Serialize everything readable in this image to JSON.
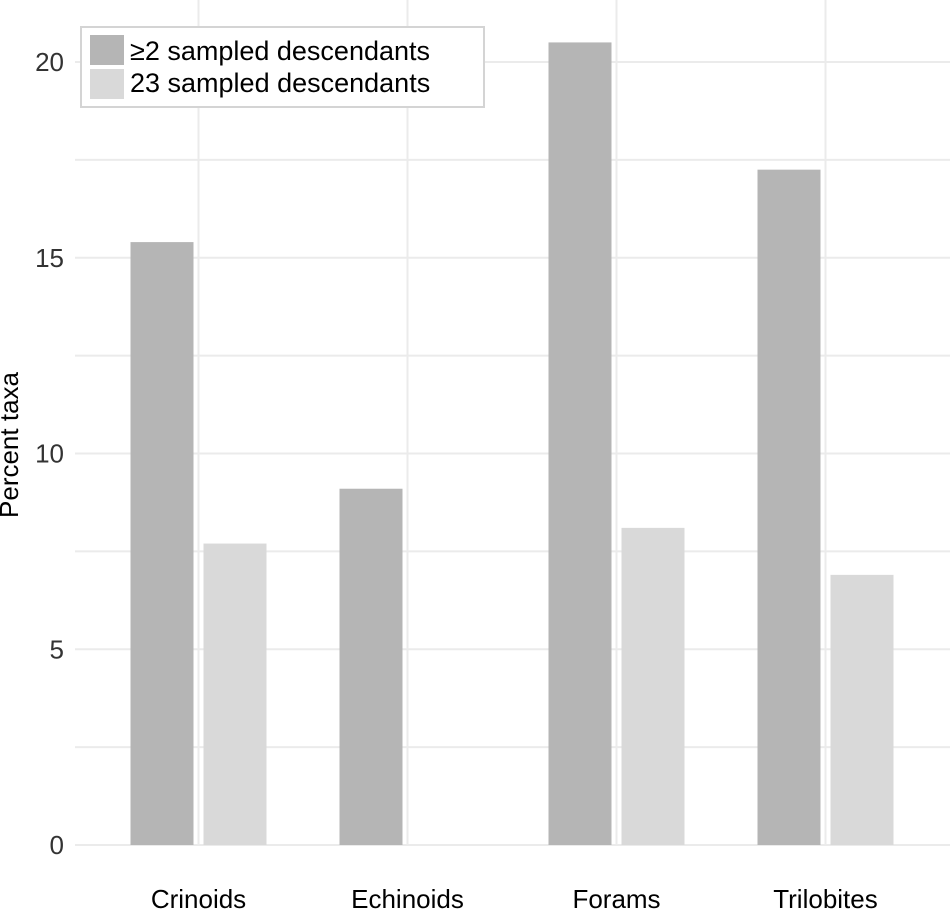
{
  "chart_data": {
    "type": "bar",
    "title": "",
    "xlabel": "",
    "ylabel": "Percent taxa",
    "ylim": [
      0,
      20.5
    ],
    "yticks": [
      0,
      5,
      10,
      15,
      20
    ],
    "categories": [
      "Crinoids",
      "Echinoids",
      "Forams",
      "Trilobites"
    ],
    "series": [
      {
        "name": "≥2 sampled descendants",
        "color": "#b5b5b5",
        "values": [
          15.4,
          9.1,
          20.5,
          17.25
        ]
      },
      {
        "name": "23 sampled descendants",
        "color": "#d9d9d9",
        "values": [
          7.7,
          0,
          8.1,
          6.9
        ]
      }
    ],
    "grid": true,
    "legend_position": "top-left"
  }
}
